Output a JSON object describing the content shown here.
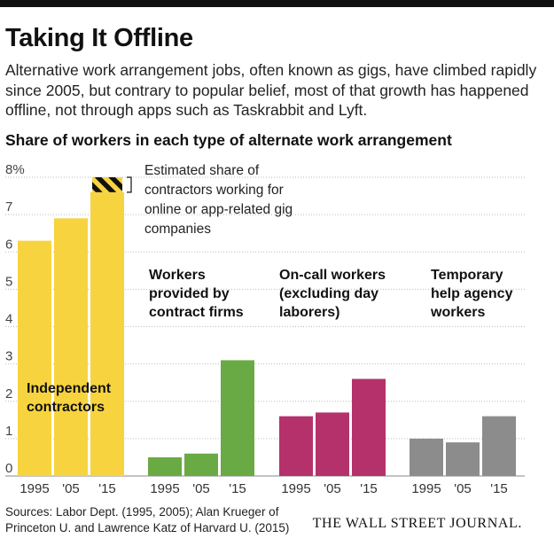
{
  "title": "Taking It Offline",
  "subtitle": "Alternative work arrangement jobs, often known as gigs, have climbed rapidly since 2005, but contrary to popular belief, most of that growth has happened offline, not through apps such as Taskrabbit and Lyft.",
  "chart_heading": "Share of workers in each type of alternate work arrangement",
  "source": "Sources: Labor Dept. (1995, 2005); Alan Krueger of Princeton U. and Lawrence Katz of Harvard U. (2015)",
  "publisher": "THE WALL STREET JOURNAL.",
  "chart_data": {
    "type": "bar",
    "title": "Share of workers in each type of alternate work arrangement",
    "ylim": [
      0,
      8
    ],
    "y_ticks": [
      "0",
      "1",
      "2",
      "3",
      "4",
      "5",
      "6",
      "7",
      "8%"
    ],
    "grid": true,
    "groups": [
      {
        "name": "Independent contractors",
        "label_lines": [
          "Independent",
          "contractors"
        ],
        "color": "#f7d43f",
        "categories": [
          "1995",
          "'05",
          "'15"
        ],
        "values": [
          6.3,
          6.9,
          7.6
        ]
      },
      {
        "name": "Workers provided by contract firms",
        "label_lines": [
          "Workers",
          "provided by",
          "contract firms"
        ],
        "color": "#6aaa45",
        "categories": [
          "1995",
          "'05",
          "'15"
        ],
        "values": [
          0.5,
          0.6,
          3.1
        ]
      },
      {
        "name": "On-call workers (excluding day laborers)",
        "label_lines": [
          "On-call workers",
          "(excluding day",
          "laborers)"
        ],
        "color": "#b5316c",
        "categories": [
          "1995",
          "'05",
          "'15"
        ],
        "values": [
          1.6,
          1.7,
          2.6
        ]
      },
      {
        "name": "Temporary help agency workers",
        "label_lines": [
          "Temporary",
          "help agency",
          "workers"
        ],
        "color": "#8c8c8c",
        "categories": [
          "1995",
          "'05",
          "'15"
        ],
        "values": [
          1.0,
          0.9,
          1.6
        ]
      }
    ],
    "online_share": {
      "group": 0,
      "category": "'15",
      "from": 7.6,
      "to": 8.0
    },
    "annotation_lines": [
      "Estimated share of",
      "contractors working for",
      "online or app-related gig",
      "companies"
    ]
  }
}
